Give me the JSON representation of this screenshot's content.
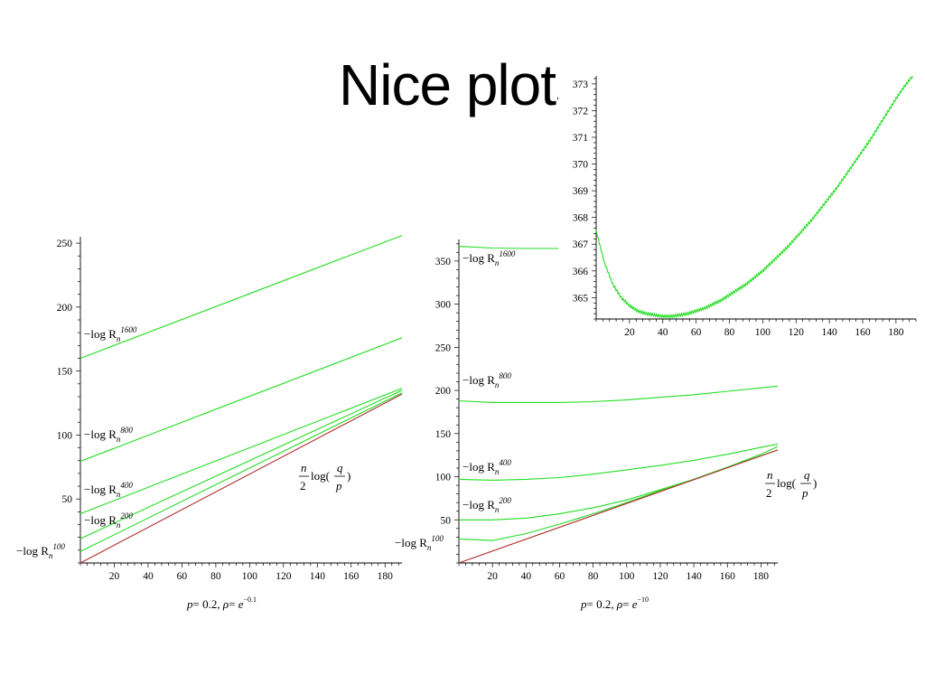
{
  "slide": {
    "title": "Nice plots"
  },
  "colors": {
    "green": "#22dd22",
    "red": "#b03030",
    "axis": "#000000"
  },
  "chart_data": [
    {
      "type": "line",
      "caption": "p = 0.2, ρ = e^{-0.1}",
      "xlabel": "",
      "ylabel": "",
      "xlim": [
        0,
        190
      ],
      "ylim": [
        0,
        255
      ],
      "xticks": [
        20,
        40,
        60,
        80,
        100,
        120,
        140,
        160,
        180
      ],
      "yticks": [
        50,
        100,
        150,
        200,
        250
      ],
      "grid": false,
      "series": [
        {
          "name": "−log R_n^1600",
          "color": "#22dd22",
          "x": [
            0,
            190
          ],
          "y": [
            160,
            256
          ]
        },
        {
          "name": "−log R_n^800",
          "color": "#22dd22",
          "x": [
            0,
            190
          ],
          "y": [
            79.5,
            176
          ]
        },
        {
          "name": "−log R_n^400",
          "color": "#22dd22",
          "x": [
            0,
            190
          ],
          "y": [
            38.5,
            136.5
          ]
        },
        {
          "name": "−log R_n^200",
          "color": "#22dd22",
          "x": [
            0,
            190
          ],
          "y": [
            19,
            135
          ]
        },
        {
          "name": "−log R_n^100",
          "color": "#22dd22",
          "x": [
            0,
            190
          ],
          "y": [
            9,
            133
          ]
        },
        {
          "name": "(n/2) log(q/p)",
          "color": "#b03030",
          "x": [
            0,
            190
          ],
          "y": [
            0,
            132
          ]
        }
      ]
    },
    {
      "type": "line",
      "caption": "p = 0.2, ρ = e^{-10}",
      "xlabel": "",
      "ylabel": "",
      "xlim": [
        0,
        190
      ],
      "ylim": [
        0,
        375
      ],
      "xticks": [
        20,
        40,
        60,
        80,
        100,
        120,
        140,
        160,
        180
      ],
      "yticks": [
        50,
        100,
        150,
        200,
        250,
        300,
        350
      ],
      "grid": false,
      "series": [
        {
          "name": "−log R_n^1600",
          "color": "#22dd22",
          "x": [
            0,
            20,
            40,
            60,
            80,
            100
          ],
          "y": [
            367,
            365,
            364.5,
            364.5,
            365,
            365
          ]
        },
        {
          "name": "−log R_n^800",
          "color": "#22dd22",
          "x": [
            0,
            20,
            40,
            60,
            80,
            100,
            120,
            140,
            160,
            180,
            190
          ],
          "y": [
            188,
            186,
            186,
            186,
            187,
            189,
            192,
            195,
            199,
            203,
            205
          ]
        },
        {
          "name": "−log R_n^400",
          "color": "#22dd22",
          "x": [
            0,
            20,
            40,
            60,
            80,
            100,
            120,
            140,
            160,
            180,
            190
          ],
          "y": [
            97,
            96,
            97,
            99,
            103,
            108,
            113,
            119,
            126,
            134,
            138
          ]
        },
        {
          "name": "−log R_n^200",
          "color": "#22dd22",
          "x": [
            0,
            20,
            40,
            60,
            80,
            100,
            120,
            140,
            160,
            180,
            190
          ],
          "y": [
            50,
            50,
            52,
            57,
            64,
            73,
            85,
            97,
            111,
            126,
            135
          ]
        },
        {
          "name": "−log R_n^100",
          "color": "#22dd22",
          "x": [
            0,
            20,
            40,
            60,
            80,
            100,
            120,
            140,
            160,
            180,
            190
          ],
          "y": [
            28,
            26,
            34,
            45,
            57,
            70,
            84,
            97,
            111,
            124,
            131
          ]
        },
        {
          "name": "(n/2) log(q/p)",
          "color": "#b03030",
          "x": [
            0,
            190
          ],
          "y": [
            0,
            131
          ]
        }
      ]
    },
    {
      "type": "line",
      "caption": "",
      "xlabel": "",
      "ylabel": "",
      "xlim": [
        0,
        192
      ],
      "ylim": [
        364.2,
        373.3
      ],
      "xticks": [
        20,
        40,
        60,
        80,
        100,
        120,
        140,
        160,
        180
      ],
      "yticks": [
        365,
        366,
        367,
        368,
        369,
        370,
        371,
        372,
        373
      ],
      "grid": false,
      "series": [
        {
          "name": "",
          "color": "#22dd22",
          "x": [
            0,
            5,
            10,
            15,
            20,
            25,
            30,
            35,
            40,
            45,
            50,
            55,
            60,
            65,
            70,
            75,
            80,
            85,
            90,
            95,
            100,
            105,
            110,
            115,
            120,
            125,
            130,
            135,
            140,
            145,
            150,
            155,
            160,
            165,
            170,
            175,
            180,
            185,
            190
          ],
          "y": [
            367.5,
            366.3,
            365.5,
            365.0,
            364.7,
            364.5,
            364.4,
            364.35,
            364.3,
            364.3,
            364.35,
            364.4,
            364.5,
            364.6,
            364.75,
            364.9,
            365.1,
            365.3,
            365.5,
            365.75,
            366.0,
            366.3,
            366.6,
            366.9,
            367.25,
            367.6,
            367.95,
            368.35,
            368.75,
            369.15,
            369.6,
            370.05,
            370.5,
            370.95,
            371.45,
            371.95,
            372.45,
            372.9,
            373.3
          ]
        }
      ]
    }
  ],
  "annotations": {
    "left": {
      "labels": [
        "−log R",
        "−log R",
        "−log R",
        "−log R",
        "−log R"
      ],
      "superscripts": [
        "1600",
        "800",
        "400",
        "200",
        "100"
      ],
      "subscript": "n",
      "formula": {
        "n": "n",
        "two": "2",
        "log": "log(",
        "q": "q",
        "p": "p",
        "close": ")"
      },
      "caption": {
        "p": "p",
        "eq1": "= 0.2, ",
        "rho": "ρ",
        "eq2": "= ",
        "e": "e",
        "exp": "−0.1"
      }
    },
    "right": {
      "labels": [
        "−log R",
        "−log R",
        "−log R",
        "−log R",
        "−log R"
      ],
      "superscripts": [
        "1600",
        "800",
        "400",
        "200",
        "100"
      ],
      "subscript": "n",
      "formula": {
        "n": "n",
        "two": "2",
        "log": "log(",
        "q": "q",
        "p": "p",
        "close": ")"
      },
      "caption": {
        "p": "p",
        "eq1": "= 0.2, ",
        "rho": "ρ",
        "eq2": "= ",
        "e": "e",
        "exp": "−10"
      }
    }
  }
}
